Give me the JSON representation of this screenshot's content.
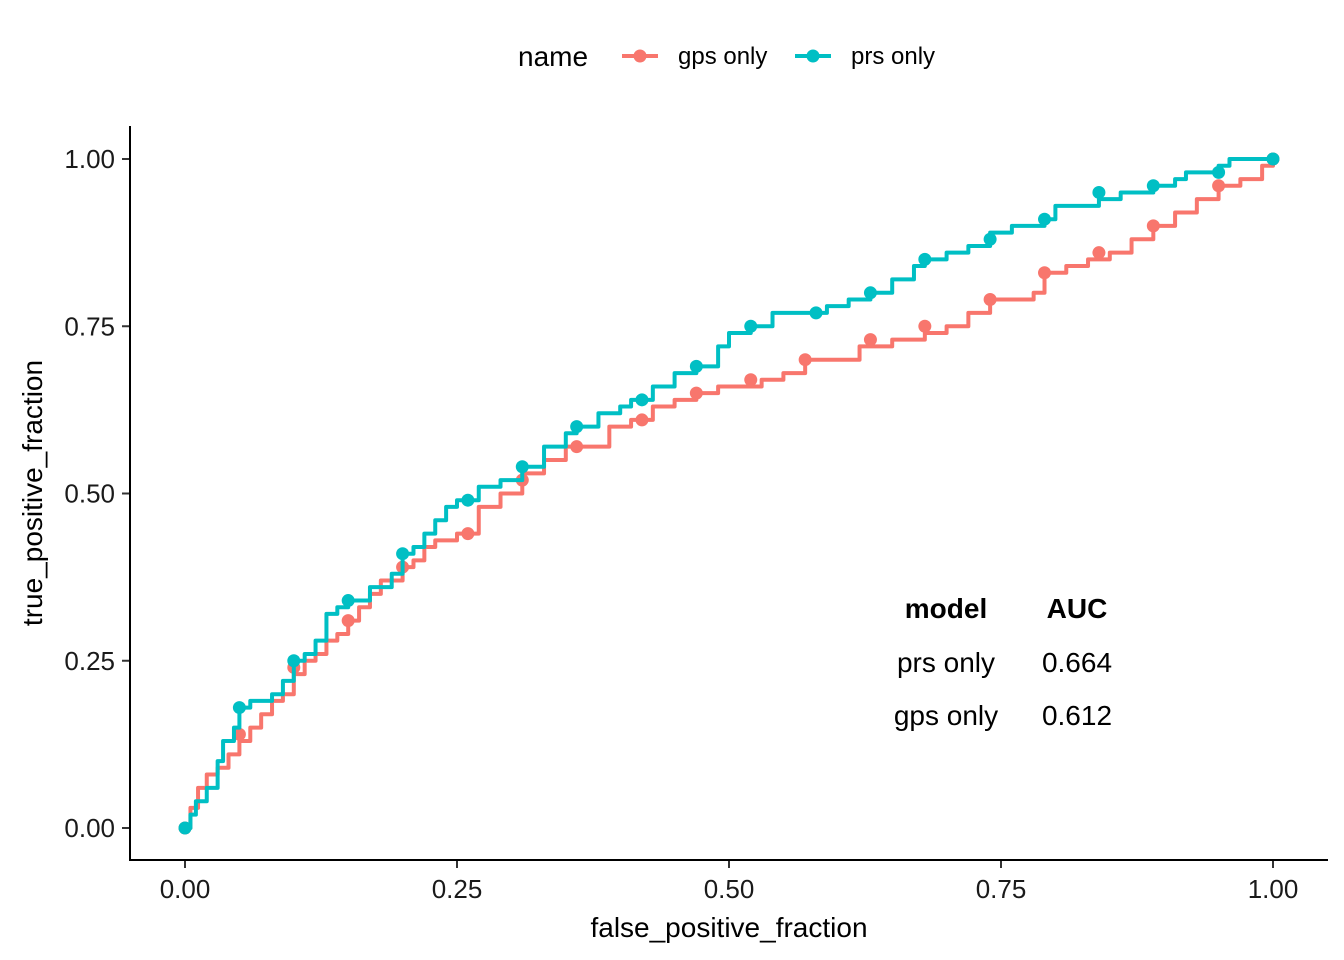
{
  "chart_data": {
    "type": "line",
    "xlabel": "false_positive_fraction",
    "ylabel": "true_positive_fraction",
    "xlim": [
      0,
      1
    ],
    "ylim": [
      0,
      1
    ],
    "x_ticks": [
      "0.00",
      "0.25",
      "0.50",
      "0.75",
      "1.00"
    ],
    "y_ticks": [
      "0.00",
      "0.25",
      "0.50",
      "0.75",
      "1.00"
    ],
    "grid": false,
    "legend": {
      "title": "name",
      "position": "top"
    },
    "series": [
      {
        "name": "gps only",
        "color": "#F8766D",
        "points": [
          [
            0,
            0
          ],
          [
            0.005,
            0.03
          ],
          [
            0.012,
            0.06
          ],
          [
            0.02,
            0.08
          ],
          [
            0.03,
            0.09
          ],
          [
            0.04,
            0.11
          ],
          [
            0.05,
            0.13
          ],
          [
            0.06,
            0.15
          ],
          [
            0.07,
            0.17
          ],
          [
            0.08,
            0.19
          ],
          [
            0.09,
            0.2
          ],
          [
            0.1,
            0.23
          ],
          [
            0.11,
            0.25
          ],
          [
            0.12,
            0.26
          ],
          [
            0.13,
            0.28
          ],
          [
            0.14,
            0.29
          ],
          [
            0.15,
            0.31
          ],
          [
            0.16,
            0.33
          ],
          [
            0.17,
            0.35
          ],
          [
            0.18,
            0.37
          ],
          [
            0.19,
            0.37
          ],
          [
            0.2,
            0.39
          ],
          [
            0.21,
            0.4
          ],
          [
            0.22,
            0.42
          ],
          [
            0.23,
            0.43
          ],
          [
            0.25,
            0.44
          ],
          [
            0.27,
            0.48
          ],
          [
            0.29,
            0.5
          ],
          [
            0.31,
            0.53
          ],
          [
            0.33,
            0.55
          ],
          [
            0.35,
            0.57
          ],
          [
            0.37,
            0.57
          ],
          [
            0.39,
            0.6
          ],
          [
            0.41,
            0.61
          ],
          [
            0.43,
            0.63
          ],
          [
            0.45,
            0.64
          ],
          [
            0.47,
            0.65
          ],
          [
            0.49,
            0.66
          ],
          [
            0.51,
            0.66
          ],
          [
            0.53,
            0.67
          ],
          [
            0.55,
            0.68
          ],
          [
            0.57,
            0.7
          ],
          [
            0.6,
            0.7
          ],
          [
            0.62,
            0.72
          ],
          [
            0.65,
            0.73
          ],
          [
            0.68,
            0.74
          ],
          [
            0.7,
            0.75
          ],
          [
            0.72,
            0.77
          ],
          [
            0.74,
            0.79
          ],
          [
            0.76,
            0.79
          ],
          [
            0.78,
            0.8
          ],
          [
            0.79,
            0.83
          ],
          [
            0.81,
            0.84
          ],
          [
            0.83,
            0.85
          ],
          [
            0.85,
            0.86
          ],
          [
            0.87,
            0.88
          ],
          [
            0.89,
            0.9
          ],
          [
            0.91,
            0.92
          ],
          [
            0.93,
            0.94
          ],
          [
            0.95,
            0.96
          ],
          [
            0.97,
            0.97
          ],
          [
            0.99,
            0.99
          ],
          [
            1,
            1
          ]
        ],
        "markers": [
          [
            0,
            0
          ],
          [
            0.05,
            0.14
          ],
          [
            0.1,
            0.24
          ],
          [
            0.15,
            0.31
          ],
          [
            0.2,
            0.39
          ],
          [
            0.26,
            0.44
          ],
          [
            0.31,
            0.52
          ],
          [
            0.36,
            0.57
          ],
          [
            0.42,
            0.61
          ],
          [
            0.47,
            0.65
          ],
          [
            0.52,
            0.67
          ],
          [
            0.57,
            0.7
          ],
          [
            0.63,
            0.73
          ],
          [
            0.68,
            0.75
          ],
          [
            0.74,
            0.79
          ],
          [
            0.79,
            0.83
          ],
          [
            0.84,
            0.86
          ],
          [
            0.89,
            0.9
          ],
          [
            0.95,
            0.96
          ],
          [
            1,
            1
          ]
        ]
      },
      {
        "name": "prs only",
        "color": "#00BFC4",
        "points": [
          [
            0,
            0
          ],
          [
            0.005,
            0.02
          ],
          [
            0.01,
            0.04
          ],
          [
            0.02,
            0.06
          ],
          [
            0.03,
            0.1
          ],
          [
            0.035,
            0.13
          ],
          [
            0.045,
            0.15
          ],
          [
            0.05,
            0.18
          ],
          [
            0.06,
            0.19
          ],
          [
            0.07,
            0.19
          ],
          [
            0.08,
            0.2
          ],
          [
            0.09,
            0.22
          ],
          [
            0.1,
            0.25
          ],
          [
            0.11,
            0.26
          ],
          [
            0.12,
            0.28
          ],
          [
            0.13,
            0.32
          ],
          [
            0.14,
            0.33
          ],
          [
            0.15,
            0.34
          ],
          [
            0.17,
            0.36
          ],
          [
            0.18,
            0.36
          ],
          [
            0.19,
            0.38
          ],
          [
            0.2,
            0.41
          ],
          [
            0.21,
            0.42
          ],
          [
            0.22,
            0.44
          ],
          [
            0.23,
            0.46
          ],
          [
            0.24,
            0.48
          ],
          [
            0.25,
            0.49
          ],
          [
            0.27,
            0.51
          ],
          [
            0.29,
            0.52
          ],
          [
            0.31,
            0.54
          ],
          [
            0.33,
            0.57
          ],
          [
            0.35,
            0.59
          ],
          [
            0.36,
            0.6
          ],
          [
            0.38,
            0.62
          ],
          [
            0.4,
            0.63
          ],
          [
            0.41,
            0.64
          ],
          [
            0.43,
            0.66
          ],
          [
            0.45,
            0.68
          ],
          [
            0.47,
            0.69
          ],
          [
            0.49,
            0.72
          ],
          [
            0.5,
            0.74
          ],
          [
            0.52,
            0.75
          ],
          [
            0.54,
            0.77
          ],
          [
            0.57,
            0.77
          ],
          [
            0.59,
            0.78
          ],
          [
            0.61,
            0.79
          ],
          [
            0.63,
            0.8
          ],
          [
            0.65,
            0.82
          ],
          [
            0.67,
            0.84
          ],
          [
            0.68,
            0.85
          ],
          [
            0.7,
            0.86
          ],
          [
            0.72,
            0.87
          ],
          [
            0.74,
            0.89
          ],
          [
            0.76,
            0.9
          ],
          [
            0.78,
            0.9
          ],
          [
            0.79,
            0.91
          ],
          [
            0.8,
            0.93
          ],
          [
            0.82,
            0.93
          ],
          [
            0.84,
            0.94
          ],
          [
            0.86,
            0.95
          ],
          [
            0.88,
            0.95
          ],
          [
            0.89,
            0.96
          ],
          [
            0.91,
            0.97
          ],
          [
            0.92,
            0.98
          ],
          [
            0.94,
            0.98
          ],
          [
            0.95,
            0.99
          ],
          [
            0.96,
            1
          ],
          [
            1,
            1
          ]
        ],
        "markers": [
          [
            0,
            0
          ],
          [
            0.05,
            0.18
          ],
          [
            0.1,
            0.25
          ],
          [
            0.15,
            0.34
          ],
          [
            0.2,
            0.41
          ],
          [
            0.26,
            0.49
          ],
          [
            0.31,
            0.54
          ],
          [
            0.36,
            0.6
          ],
          [
            0.42,
            0.64
          ],
          [
            0.47,
            0.69
          ],
          [
            0.52,
            0.75
          ],
          [
            0.58,
            0.77
          ],
          [
            0.63,
            0.8
          ],
          [
            0.68,
            0.85
          ],
          [
            0.74,
            0.88
          ],
          [
            0.79,
            0.91
          ],
          [
            0.84,
            0.95
          ],
          [
            0.89,
            0.96
          ],
          [
            0.95,
            0.98
          ],
          [
            1,
            1
          ]
        ]
      }
    ],
    "annotation_table": {
      "headers": [
        "model",
        "AUC"
      ],
      "rows": [
        [
          "prs only",
          "0.664"
        ],
        [
          "gps only",
          "0.612"
        ]
      ]
    }
  }
}
